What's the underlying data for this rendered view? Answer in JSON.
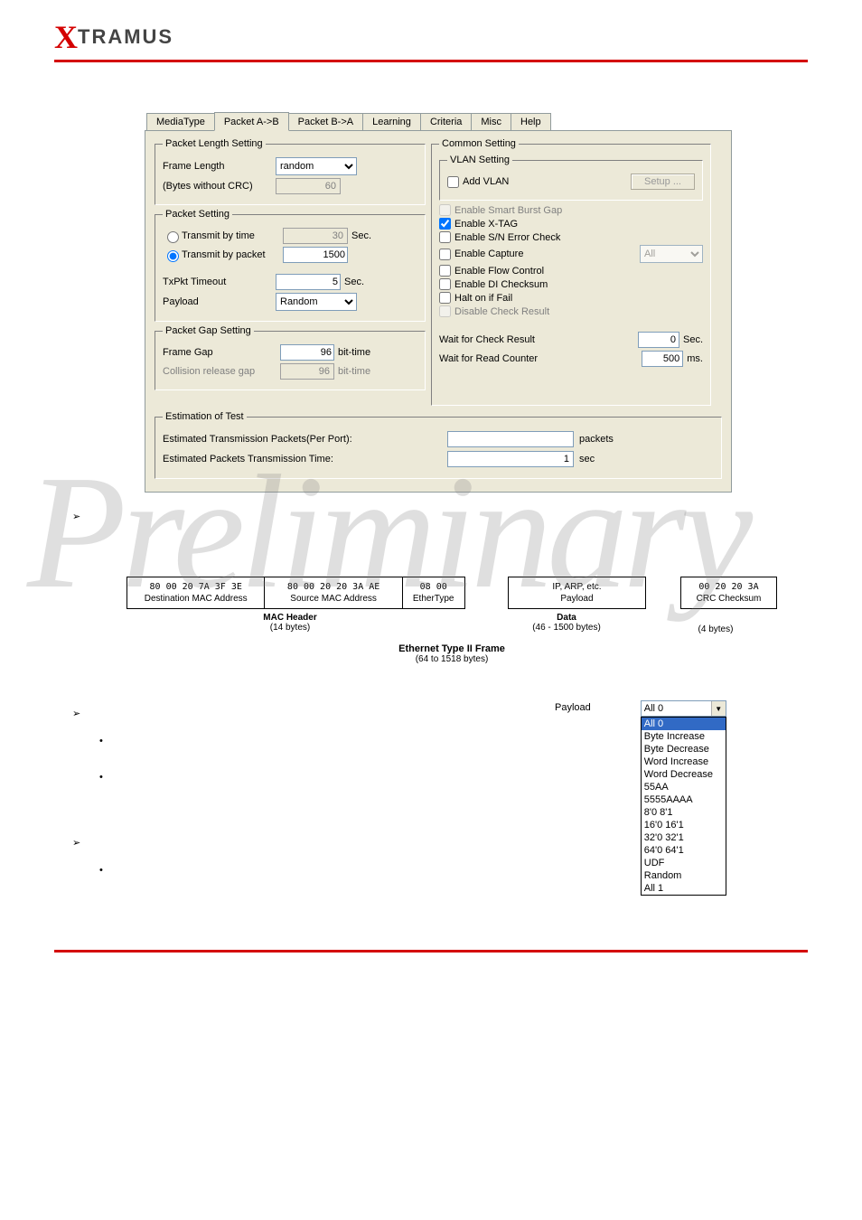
{
  "logo": {
    "x": "X",
    "rest": "TRAMUS"
  },
  "tabs": {
    "mediatype": "MediaType",
    "packet_ab": "Packet A->B",
    "packet_ba": "Packet B->A",
    "learning": "Learning",
    "criteria": "Criteria",
    "misc": "Misc",
    "help": "Help"
  },
  "pkt_len": {
    "legend": "Packet Length Setting",
    "frame_length_label": "Frame Length",
    "frame_length_value": "random",
    "bytes_label": "(Bytes without CRC)",
    "bytes_value": "60"
  },
  "pkt_setting": {
    "legend": "Packet Setting",
    "transmit_time_label": "Transmit by time",
    "transmit_time_value": "30",
    "transmit_time_unit": "Sec.",
    "transmit_packet_label": "Transmit by packet",
    "transmit_packet_value": "1500",
    "txpkt_timeout_label": "TxPkt Timeout",
    "txpkt_timeout_value": "5",
    "txpkt_timeout_unit": "Sec.",
    "payload_label": "Payload",
    "payload_value": "Random"
  },
  "gap": {
    "legend": "Packet Gap Setting",
    "frame_gap_label": "Frame Gap",
    "frame_gap_value": "96",
    "frame_gap_unit": "bit-time",
    "collision_label": "Collision release gap",
    "collision_value": "96",
    "collision_unit": "bit-time"
  },
  "common": {
    "legend": "Common Setting",
    "vlan_legend": "VLAN Setting",
    "add_vlan": "Add VLAN",
    "setup_btn": "Setup ...",
    "smart_burst": "Enable Smart Burst Gap",
    "xtag": "Enable X-TAG",
    "sn_err": "Enable S/N Error Check",
    "capture": "Enable Capture",
    "capture_sel": "All",
    "flow": "Enable Flow Control",
    "di_chk": "Enable DI Checksum",
    "halt": "Halt on if Fail",
    "disable_chk": "Disable Check Result",
    "wait_check_label": "Wait for Check Result",
    "wait_check_value": "0",
    "wait_check_unit": "Sec.",
    "wait_read_label": "Wait for Read Counter",
    "wait_read_value": "500",
    "wait_read_unit": "ms."
  },
  "estimation": {
    "legend": "Estimation of Test",
    "packets_label": "Estimated Transmission Packets(Per Port):",
    "packets_value": "",
    "packets_unit": "packets",
    "time_label": "Estimated Packets Transmission Time:",
    "time_value": "1",
    "time_unit": "sec"
  },
  "frame": {
    "dest_mac_hex": "80 00 20 7A 3F 3E",
    "dest_mac_label": "Destination MAC Address",
    "src_mac_hex": "80 00 20 20 3A AE",
    "src_mac_label": "Source MAC Address",
    "ethertype_hex": "08 00",
    "ethertype_label": "EtherType",
    "payload_top": "IP, ARP, etc.",
    "payload_label": "Payload",
    "crc_hex": "00 20 20 3A",
    "crc_label": "CRC Checksum",
    "mac_header_label": "MAC Header",
    "mac_header_bytes": "(14 bytes)",
    "data_label": "Data",
    "data_bytes": "(46 - 1500 bytes)",
    "crc_bytes": "(4 bytes)",
    "title": "Ethernet Type II Frame",
    "title_sub": "(64 to 1518 bytes)"
  },
  "payload_dd": {
    "label": "Payload",
    "selected": "All 0",
    "items": [
      "All 0",
      "Byte Increase",
      "Byte Decrease",
      "Word Increase",
      "Word Decrease",
      "55AA",
      "5555AAAA",
      "8'0 8'1",
      "16'0 16'1",
      "32'0 32'1",
      "64'0 64'1",
      "UDF",
      "Random",
      "All 1"
    ]
  },
  "bullets": {
    "arrow": "➢",
    "dot": "•"
  }
}
